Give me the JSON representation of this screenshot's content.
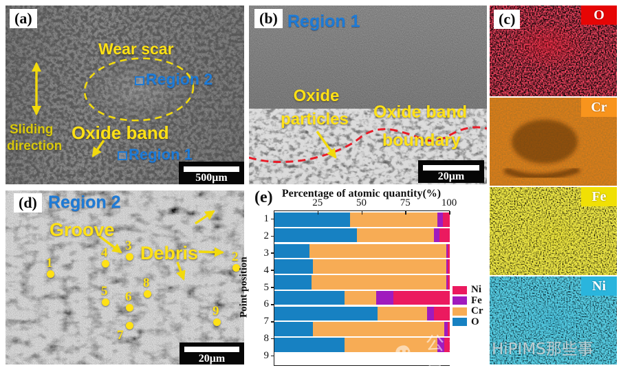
{
  "panels": {
    "a": {
      "label": "(a)",
      "wear_scar": "Wear scar",
      "region2": "Region 2",
      "oxide_band": "Oxide band",
      "region1": "Region 1",
      "sliding_l1": "Sliding",
      "sliding_l2": "direction",
      "scale_bar": "500μm"
    },
    "b": {
      "label": "(b)",
      "region1": "Region 1",
      "oxide_l1": "Oxide",
      "oxide_l2": "particles",
      "band_l1": "Oxide band",
      "band_l2": "boundary",
      "scale_bar": "20μm"
    },
    "c": {
      "label": "(c)",
      "maps": [
        {
          "element": "O",
          "tag_color": "#e60505"
        },
        {
          "element": "Cr",
          "tag_color": "#f8941d"
        },
        {
          "element": "Fe",
          "tag_color": "#f0e005"
        },
        {
          "element": "Ni",
          "tag_color": "#2ab5dd"
        }
      ]
    },
    "d": {
      "label": "(d)",
      "region2": "Region 2",
      "groove": "Groove",
      "debris": "Debris",
      "scale_bar": "20μm",
      "points": [
        "1",
        "2",
        "3",
        "4",
        "5",
        "6",
        "7",
        "8",
        "9"
      ]
    },
    "e": {
      "label": "(e)"
    }
  },
  "watermarks": {
    "wechat_text": "公众号",
    "brand_text": "HiPIMS那些事"
  },
  "annotation_colors": {
    "yellow": "#ffe115",
    "blue": "#1d7bd7",
    "red_dash": "#e81c28"
  },
  "chart_data": {
    "type": "bar",
    "orientation": "horizontal",
    "stacked": true,
    "title": "Percentage of atomic quantity(%)",
    "ylabel": "Point position",
    "categories": [
      "1",
      "2",
      "3",
      "4",
      "5",
      "6",
      "7",
      "8",
      "9"
    ],
    "xlim": [
      0,
      100
    ],
    "xticks": [
      25,
      50,
      75,
      100
    ],
    "grid": false,
    "legend_position": "right",
    "legend_order": [
      "Ni",
      "Fe",
      "Cr",
      "O"
    ],
    "series": [
      {
        "name": "O",
        "color": "#1781c2",
        "values": [
          43,
          47,
          20,
          22,
          21,
          40,
          59,
          22,
          40
        ]
      },
      {
        "name": "Cr",
        "color": "#f7ac55",
        "values": [
          50,
          44,
          78,
          76,
          77,
          18,
          28,
          75,
          53
        ]
      },
      {
        "name": "Fe",
        "color": "#a01bbe",
        "values": [
          3,
          3,
          1,
          1,
          1,
          10,
          4,
          2,
          4
        ]
      },
      {
        "name": "Ni",
        "color": "#eb1a5f",
        "values": [
          4,
          6,
          1,
          1,
          1,
          32,
          9,
          1,
          3
        ]
      }
    ]
  }
}
